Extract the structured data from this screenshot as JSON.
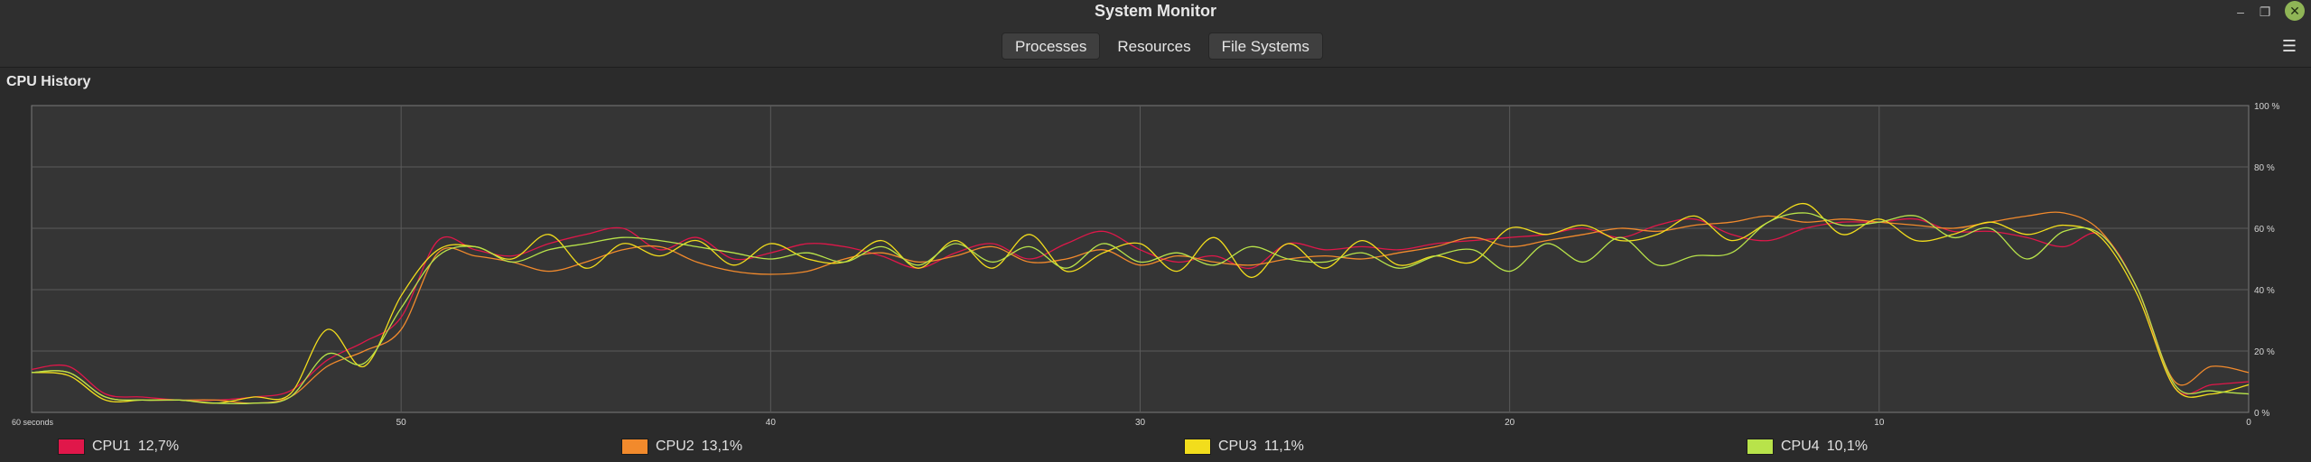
{
  "window": {
    "title": "System Monitor",
    "controls": {
      "minimize": "–",
      "maximize": "❐",
      "close": "✕"
    }
  },
  "tabs": [
    {
      "label": "Processes",
      "active": false
    },
    {
      "label": "Resources",
      "active": true
    },
    {
      "label": "File Systems",
      "active": false
    }
  ],
  "menu_icon": "hamburger-menu-icon",
  "section": {
    "title": "CPU History"
  },
  "chart_data": {
    "type": "line",
    "x_label_left": "60 seconds",
    "x_ticks": [
      "50",
      "40",
      "30",
      "20",
      "10",
      "0"
    ],
    "y_ticks": [
      "0 %",
      "20 %",
      "40 %",
      "60 %",
      "80 %",
      "100 %"
    ],
    "ylim": [
      0,
      100
    ],
    "xlim": [
      60,
      0
    ],
    "grid": true,
    "series": [
      {
        "name": "CPU1",
        "label": "CPU1",
        "percent": "12,7%",
        "color": "#e0174a",
        "x": [
          60,
          59,
          58,
          57,
          56,
          55,
          54,
          53,
          52,
          51,
          50,
          49,
          48,
          47,
          46,
          45,
          44,
          43,
          42,
          41,
          40,
          39,
          38,
          37,
          36,
          35,
          34,
          33,
          32,
          31,
          30,
          29,
          28,
          27,
          26,
          25,
          24,
          23,
          22,
          21,
          20,
          19,
          18,
          17,
          16,
          15,
          14,
          13,
          12,
          11,
          10,
          9,
          8,
          7,
          6,
          5,
          4,
          3,
          2,
          1,
          0
        ],
        "y": [
          14,
          15,
          6,
          5,
          4,
          4,
          5,
          7,
          17,
          23,
          31,
          56,
          53,
          51,
          55,
          58,
          60,
          53,
          57,
          50,
          52,
          55,
          54,
          51,
          47,
          52,
          55,
          50,
          55,
          59,
          53,
          49,
          51,
          47,
          55,
          53,
          54,
          53,
          55,
          56,
          57,
          58,
          60,
          57,
          61,
          63,
          58,
          56,
          60,
          62,
          62,
          63,
          59,
          59,
          57,
          54,
          58,
          40,
          8,
          9,
          10
        ]
      },
      {
        "name": "CPU2",
        "label": "CPU2",
        "percent": "13,1%",
        "color": "#f28a2c",
        "x": [
          60,
          59,
          58,
          57,
          56,
          55,
          54,
          53,
          52,
          51,
          50,
          49,
          48,
          47,
          46,
          45,
          44,
          43,
          42,
          41,
          40,
          39,
          38,
          37,
          36,
          35,
          34,
          33,
          32,
          31,
          30,
          29,
          28,
          27,
          26,
          25,
          24,
          23,
          22,
          21,
          20,
          19,
          18,
          17,
          16,
          15,
          14,
          13,
          12,
          11,
          10,
          9,
          8,
          7,
          6,
          5,
          4,
          3,
          2,
          1,
          0
        ],
        "y": [
          13,
          13,
          5,
          4,
          4,
          4,
          3,
          5,
          15,
          20,
          27,
          52,
          51,
          49,
          46,
          49,
          53,
          54,
          49,
          46,
          45,
          46,
          50,
          52,
          49,
          51,
          54,
          49,
          50,
          53,
          48,
          51,
          49,
          48,
          50,
          51,
          50,
          52,
          54,
          57,
          54,
          56,
          58,
          60,
          59,
          61,
          62,
          64,
          62,
          63,
          62,
          61,
          60,
          62,
          64,
          65,
          59,
          40,
          10,
          15,
          13
        ]
      },
      {
        "name": "CPU3",
        "label": "CPU3",
        "percent": "11,1%",
        "color": "#f2dd1c",
        "x": [
          60,
          59,
          58,
          57,
          56,
          55,
          54,
          53,
          52,
          51,
          50,
          49,
          48,
          47,
          46,
          45,
          44,
          43,
          42,
          41,
          40,
          39,
          38,
          37,
          36,
          35,
          34,
          33,
          32,
          31,
          30,
          29,
          28,
          27,
          26,
          25,
          24,
          23,
          22,
          21,
          20,
          19,
          18,
          17,
          16,
          15,
          14,
          13,
          12,
          11,
          10,
          9,
          8,
          7,
          6,
          5,
          4,
          3,
          2,
          1,
          0
        ],
        "y": [
          13,
          12,
          4,
          4,
          4,
          3,
          5,
          6,
          27,
          15,
          38,
          53,
          54,
          50,
          58,
          47,
          55,
          51,
          56,
          48,
          55,
          50,
          49,
          56,
          47,
          56,
          47,
          58,
          46,
          52,
          55,
          46,
          57,
          44,
          55,
          47,
          56,
          48,
          51,
          49,
          60,
          58,
          61,
          56,
          58,
          64,
          56,
          62,
          68,
          58,
          63,
          56,
          58,
          62,
          58,
          61,
          57,
          38,
          8,
          6,
          9
        ]
      },
      {
        "name": "CPU4",
        "label": "CPU4",
        "percent": "10,1%",
        "color": "#b8e34a",
        "x": [
          60,
          59,
          58,
          57,
          56,
          55,
          54,
          53,
          52,
          51,
          50,
          49,
          48,
          47,
          46,
          45,
          44,
          43,
          42,
          41,
          40,
          39,
          38,
          37,
          36,
          35,
          34,
          33,
          32,
          31,
          30,
          29,
          28,
          27,
          26,
          25,
          24,
          23,
          22,
          21,
          20,
          19,
          18,
          17,
          16,
          15,
          14,
          13,
          12,
          11,
          10,
          9,
          8,
          7,
          6,
          5,
          4,
          3,
          2,
          1,
          0
        ],
        "y": [
          13,
          13,
          5,
          4,
          4,
          3,
          3,
          5,
          19,
          16,
          34,
          51,
          54,
          49,
          53,
          55,
          57,
          56,
          54,
          52,
          50,
          52,
          49,
          54,
          48,
          55,
          49,
          54,
          47,
          55,
          49,
          52,
          48,
          54,
          50,
          49,
          52,
          47,
          51,
          53,
          46,
          55,
          49,
          57,
          48,
          51,
          52,
          62,
          65,
          61,
          62,
          64,
          57,
          60,
          50,
          59,
          58,
          40,
          9,
          7,
          6
        ]
      }
    ]
  }
}
